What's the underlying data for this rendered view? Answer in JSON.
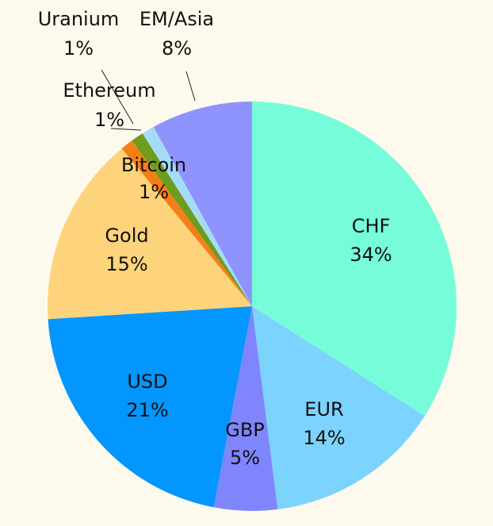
{
  "chart_data": {
    "type": "pie",
    "background": "#fdfaed",
    "slices": [
      {
        "label": "CHF",
        "value": 34,
        "value_label": "34%",
        "color": "#76fcd8"
      },
      {
        "label": "EUR",
        "value": 14,
        "value_label": "14%",
        "color": "#7bd3fe"
      },
      {
        "label": "GBP",
        "value": 5,
        "value_label": "5%",
        "color": "#7f86fd"
      },
      {
        "label": "USD",
        "value": 21,
        "value_label": "21%",
        "color": "#0496ff"
      },
      {
        "label": "Gold",
        "value": 15,
        "value_label": "15%",
        "color": "#fdd47b"
      },
      {
        "label": "Bitcoin",
        "value": 1,
        "value_label": "1%",
        "color": "#f57f17"
      },
      {
        "label": "Uranium",
        "value": 1,
        "value_label": "1%",
        "color": "#6f9b1f"
      },
      {
        "label": "Ethereum",
        "value": 1,
        "value_label": "1%",
        "color": "#a4dcf8"
      },
      {
        "label": "EM/Asia",
        "value": 8,
        "value_label": "8%",
        "color": "#8e93fd"
      }
    ]
  }
}
